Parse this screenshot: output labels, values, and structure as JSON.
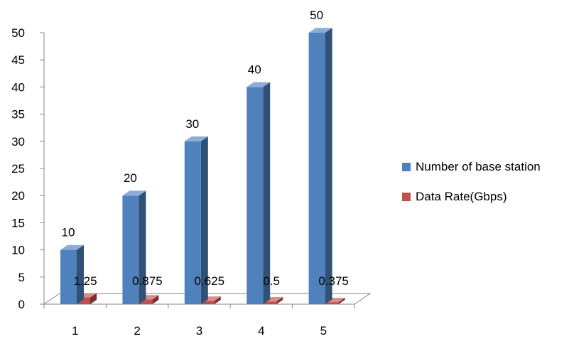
{
  "chart_data": {
    "type": "bar",
    "categories": [
      "1",
      "2",
      "3",
      "4",
      "5"
    ],
    "series": [
      {
        "name": "Number of base station",
        "values": [
          10,
          20,
          30,
          40,
          50
        ],
        "labels": [
          "10",
          "20",
          "30",
          "40",
          "50"
        ],
        "color": "#4f81bd"
      },
      {
        "name": "Data Rate(Gbps)",
        "values": [
          1.25,
          0.875,
          0.625,
          0.5,
          0.375
        ],
        "labels": [
          "1.25",
          "0.875",
          "0.625",
          "0.5",
          "0.375"
        ],
        "color": "#c0504d"
      }
    ],
    "ylim": [
      0,
      50
    ],
    "yticks": [
      "0",
      "5",
      "10",
      "15",
      "20",
      "25",
      "30",
      "35",
      "40",
      "45",
      "50"
    ],
    "grid": false,
    "legend_position": "right",
    "style": "3d-column"
  }
}
